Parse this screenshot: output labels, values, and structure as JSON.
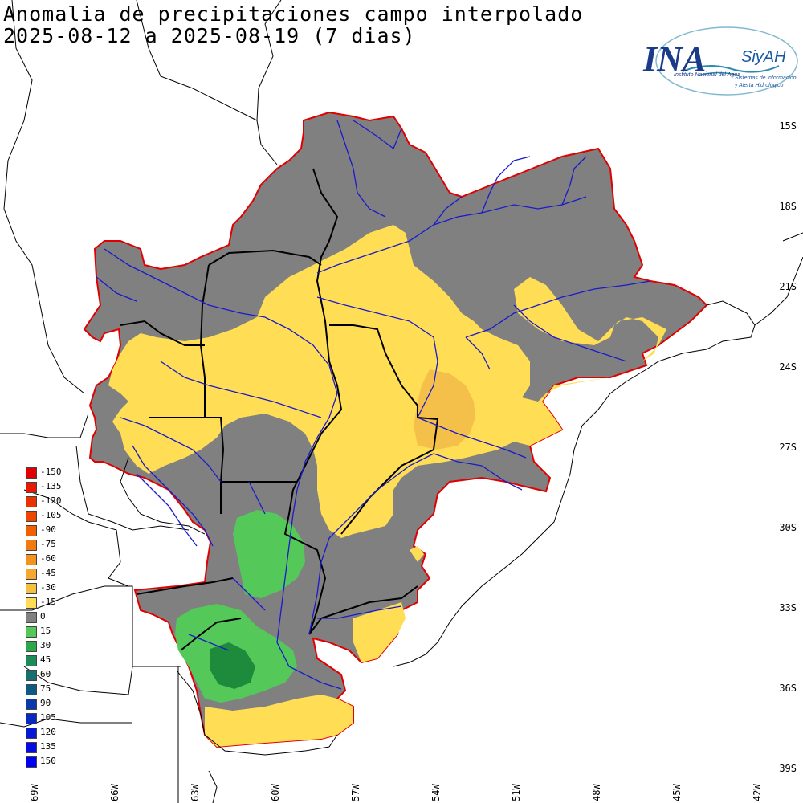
{
  "title": {
    "line1": "Anomalia de precipitaciones campo interpolado",
    "line2": "2025-08-12 a 2025-08-19 (7 dias)"
  },
  "logo": {
    "ina": "INA",
    "siyah": "SiyAH",
    "subtitle": "Instituto Nacional del Agua",
    "tagline1": "Sistemas de información",
    "tagline2": "y Alerta Hidrológico"
  },
  "colors": {
    "grey": "#808080",
    "yellow": "#ffde55",
    "orange": "#f5c04a",
    "lightgreen": "#55c85a",
    "darkgreen": "#1e8a3c",
    "border": "#e00000",
    "river": "#1a1acc",
    "political": "#000000"
  },
  "legend": [
    {
      "label": "-150",
      "color": "#e00000"
    },
    {
      "label": "-135",
      "color": "#e51a00"
    },
    {
      "label": "-120",
      "color": "#ea3200"
    },
    {
      "label": "-105",
      "color": "#ee4800"
    },
    {
      "label": "-90",
      "color": "#f06000"
    },
    {
      "label": "-75",
      "color": "#f27a10"
    },
    {
      "label": "-60",
      "color": "#f49220"
    },
    {
      "label": "-45",
      "color": "#f4a830"
    },
    {
      "label": "-30",
      "color": "#f4c040"
    },
    {
      "label": "-15",
      "color": "#ffde55"
    },
    {
      "label": "0",
      "color": "#808080"
    },
    {
      "label": "15",
      "color": "#55c85a"
    },
    {
      "label": "30",
      "color": "#2aa84a"
    },
    {
      "label": "45",
      "color": "#1e8a5a"
    },
    {
      "label": "60",
      "color": "#15706e"
    },
    {
      "label": "75",
      "color": "#0e5a80"
    },
    {
      "label": "90",
      "color": "#0a3aaa"
    },
    {
      "label": "105",
      "color": "#0828c0"
    },
    {
      "label": "120",
      "color": "#0618d2"
    },
    {
      "label": "135",
      "color": "#040ce0"
    },
    {
      "label": "150",
      "color": "#0000f0"
    }
  ],
  "lat_labels": [
    "15S",
    "18S",
    "21S",
    "24S",
    "27S",
    "30S",
    "33S",
    "36S",
    "39S"
  ],
  "lon_labels": [
    "69W",
    "66W",
    "63W",
    "60W",
    "57W",
    "54W",
    "51W",
    "48W",
    "45W",
    "42W"
  ]
}
